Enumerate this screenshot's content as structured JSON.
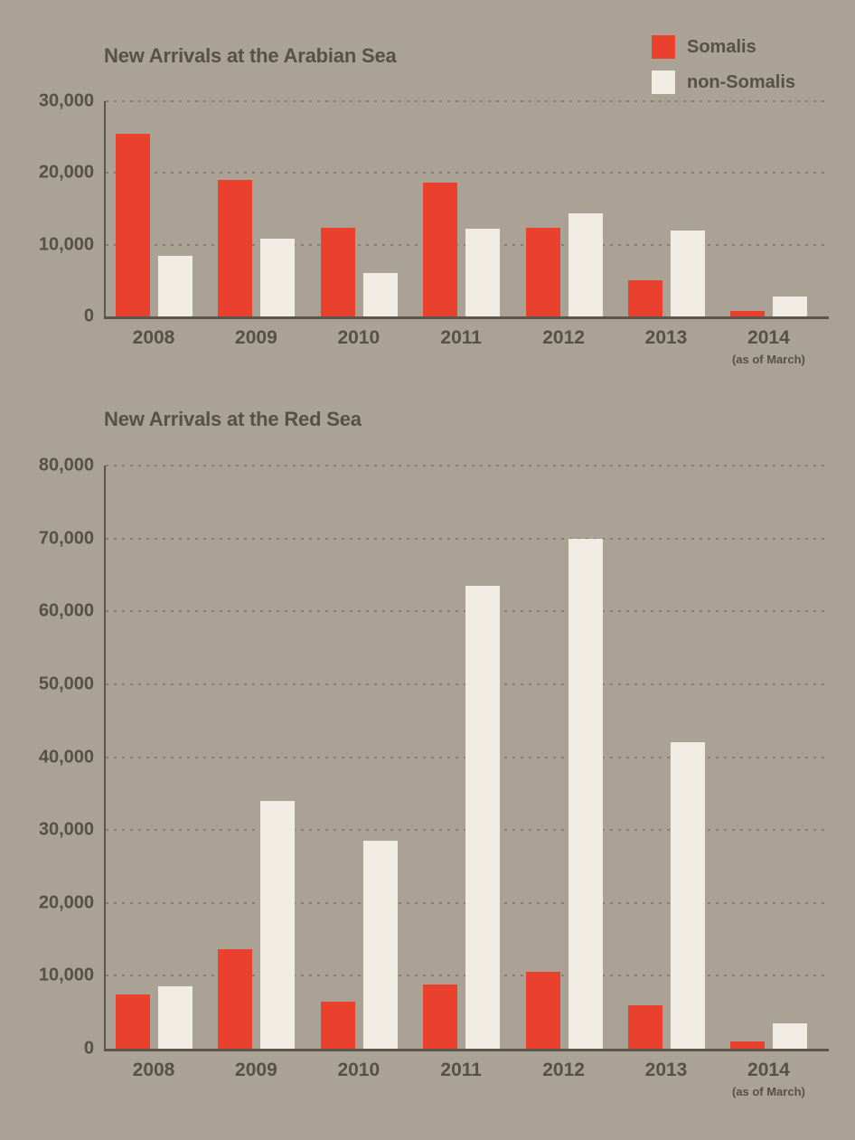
{
  "page": {
    "background_color": "#aba296",
    "text_color": "#575046",
    "somalis_color": "#e9412d",
    "non_somalis_color": "#f0ece3"
  },
  "legend": {
    "position": "top-right",
    "items": [
      {
        "label": "Somalis",
        "color": "#e9412d"
      },
      {
        "label": "non-Somalis",
        "color": "#f0ece3"
      }
    ]
  },
  "chart_data": [
    {
      "type": "bar",
      "title": "New Arrivals at the Arabian Sea",
      "categories": [
        "2008",
        "2009",
        "2010",
        "2011",
        "2012",
        "2013",
        "2014"
      ],
      "x_note_category": "2014",
      "x_note_label": "(as of March)",
      "series": [
        {
          "name": "Somalis",
          "color": "#e9412d",
          "values": [
            25500,
            19000,
            12300,
            18600,
            12400,
            5000,
            800
          ]
        },
        {
          "name": "non-Somalis",
          "color": "#f0ece3",
          "values": [
            8500,
            10800,
            6000,
            12200,
            14400,
            12000,
            2800
          ]
        }
      ],
      "xlabel": "",
      "ylabel": "",
      "ylim": [
        0,
        30000
      ],
      "yticks": [
        0,
        10000,
        20000,
        30000
      ],
      "ytick_labels": [
        "0",
        "10,000",
        "20,000",
        "30,000"
      ],
      "grid": "dotted horizontal",
      "legend_position": "top-right"
    },
    {
      "type": "bar",
      "title": "New Arrivals at the Red Sea",
      "categories": [
        "2008",
        "2009",
        "2010",
        "2011",
        "2012",
        "2013",
        "2014"
      ],
      "x_note_category": "2014",
      "x_note_label": "(as of March)",
      "series": [
        {
          "name": "Somalis",
          "color": "#e9412d",
          "values": [
            7500,
            13700,
            6500,
            8800,
            10500,
            6000,
            1000
          ]
        },
        {
          "name": "non-Somalis",
          "color": "#f0ece3",
          "values": [
            8500,
            34000,
            28500,
            63500,
            70000,
            42000,
            3500
          ]
        }
      ],
      "xlabel": "",
      "ylabel": "",
      "ylim": [
        0,
        80000
      ],
      "yticks": [
        0,
        10000,
        20000,
        30000,
        40000,
        50000,
        60000,
        70000,
        80000
      ],
      "ytick_labels": [
        "0",
        "10,000",
        "20,000",
        "30,000",
        "40,000",
        "50,000",
        "60,000",
        "70,000",
        "80,000"
      ],
      "grid": "dotted horizontal",
      "legend_position": "none"
    }
  ]
}
